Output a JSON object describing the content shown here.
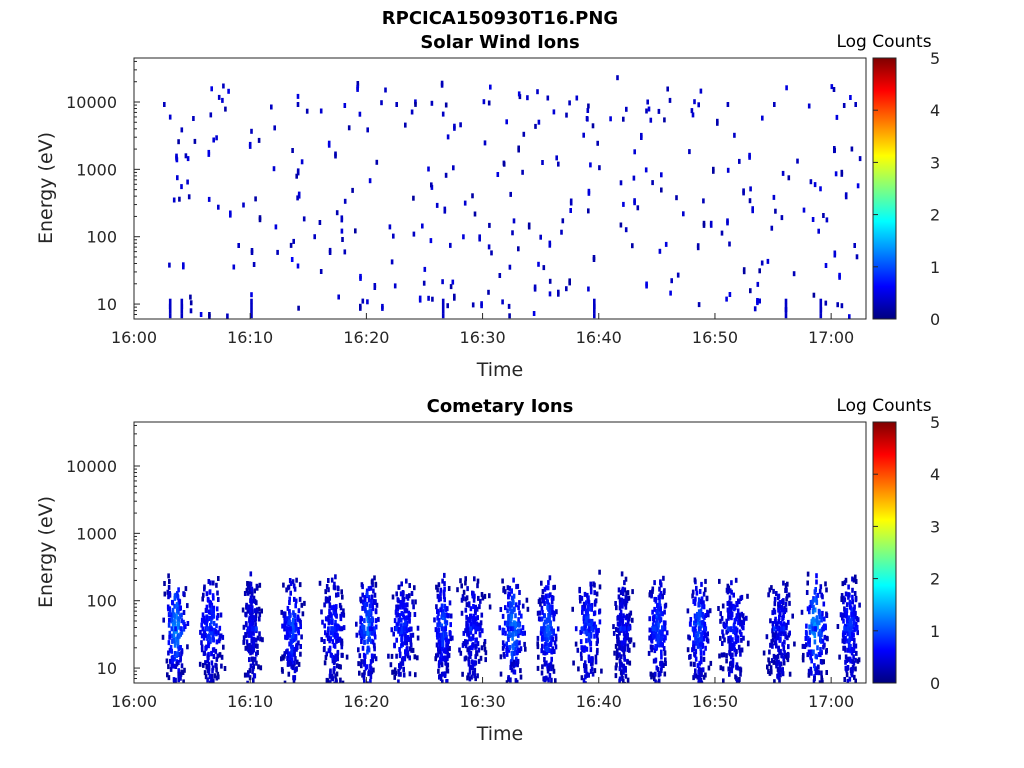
{
  "figure_title": "RPCICA150930T16.PNG",
  "colormap": [
    "#00007f",
    "#0000ff",
    "#007fff",
    "#00ffff",
    "#7fff7f",
    "#ffff00",
    "#ff7f00",
    "#ff0000",
    "#7f0000"
  ],
  "chart_data": [
    {
      "type": "heatmap",
      "title": "Solar Wind Ions",
      "xlabel": "Time",
      "ylabel": "Energy (eV)",
      "y_scale": "log",
      "xlim": [
        "16:00",
        "17:03"
      ],
      "ylim": [
        6,
        45000
      ],
      "xticks": [
        "16:00",
        "16:10",
        "16:20",
        "16:30",
        "16:40",
        "16:50",
        "17:00"
      ],
      "yticks": [
        "10",
        "100",
        "1000",
        "10000"
      ],
      "colorbar_label": "Log Counts",
      "colorbar_ticks": [
        "0",
        "1",
        "2",
        "3",
        "4",
        "5"
      ],
      "clim": [
        0,
        5
      ],
      "grid": false,
      "pattern": "sparse",
      "seed": 11,
      "cells": [
        [
          "16:02.5",
          10000,
          0.3
        ],
        [
          "16:03",
          6500,
          0.4
        ],
        [
          "16:04",
          4200,
          0.3
        ],
        [
          "16:05",
          6200,
          0.3
        ],
        [
          "16:07.5",
          11500,
          0.4
        ],
        [
          "16:06.5",
          7000,
          0.3
        ],
        [
          "16:07",
          3200,
          0.4
        ],
        [
          "16:10",
          4000,
          0.3
        ],
        [
          "16:12",
          4500,
          0.3
        ],
        [
          "16:14",
          10000,
          0.3
        ],
        [
          "16:16",
          8000,
          0.4
        ],
        [
          "16:20",
          4200,
          0.3
        ],
        [
          "16:22.5",
          10000,
          0.3
        ],
        [
          "16:28",
          5000,
          0.3
        ],
        [
          "16:30",
          11000,
          0.4
        ],
        [
          "16:35.5",
          12500,
          0.3
        ],
        [
          "16:38",
          12500,
          0.4
        ],
        [
          "16:41.5",
          25000,
          0.3
        ],
        [
          "16:44",
          8000,
          0.3
        ],
        [
          "16:48",
          7000,
          0.4
        ],
        [
          "16:51",
          10000,
          0.3
        ],
        [
          "16:55",
          10000,
          0.3
        ],
        [
          "16:58",
          9500,
          0.4
        ],
        [
          "17:02",
          10000,
          0.3
        ],
        [
          "16:10",
          15,
          0.5
        ],
        [
          "16:39.5",
          10,
          0.4
        ],
        [
          "16:03",
          10,
          0.4
        ],
        [
          "16:04",
          10,
          0.4
        ],
        [
          "16:56",
          9,
          0.4
        ],
        [
          "16:59",
          9,
          0.4
        ],
        [
          "16:13.5",
          50,
          0.6
        ],
        [
          "16:14",
          40,
          0.5
        ]
      ]
    },
    {
      "type": "heatmap",
      "title": "Cometary Ions",
      "xlabel": "Time",
      "ylabel": "Energy (eV)",
      "y_scale": "log",
      "xlim": [
        "16:00",
        "17:03"
      ],
      "ylim": [
        6,
        45000
      ],
      "xticks": [
        "16:00",
        "16:10",
        "16:20",
        "16:30",
        "16:40",
        "16:50",
        "17:00"
      ],
      "yticks": [
        "10",
        "100",
        "1000",
        "10000"
      ],
      "colorbar_label": "Log Counts",
      "colorbar_ticks": [
        "0",
        "1",
        "2",
        "3",
        "4",
        "5"
      ],
      "clim": [
        0,
        5
      ],
      "grid": false,
      "pattern": "bursts",
      "seed": 29,
      "bursts": [
        [
          "16:03.5",
          1.3
        ],
        [
          "16:06.5",
          0.8
        ],
        [
          "16:10",
          0.5
        ],
        [
          "16:13.5",
          0.9
        ],
        [
          "16:17",
          0.7
        ],
        [
          "16:20",
          1.1
        ],
        [
          "16:23",
          0.7
        ],
        [
          "16:26.5",
          0.9
        ],
        [
          "16:29",
          0.6
        ],
        [
          "16:32.5",
          1.2
        ],
        [
          "16:35.5",
          1.0
        ],
        [
          "16:39",
          0.8
        ],
        [
          "16:42",
          0.5
        ],
        [
          "16:45",
          0.9
        ],
        [
          "16:48.5",
          1.0
        ],
        [
          "16:51.5",
          0.6
        ],
        [
          "16:55.5",
          0.5
        ],
        [
          "16:58.5",
          1.3
        ],
        [
          "17:01.5",
          0.8
        ]
      ]
    }
  ]
}
